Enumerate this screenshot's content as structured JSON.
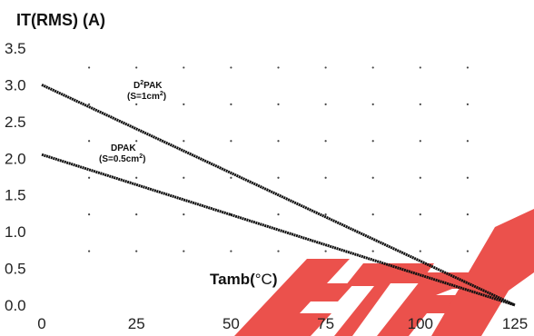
{
  "chart_data": {
    "type": "line",
    "ylabel": "IT(RMS) (A)",
    "xlabel_main": "Tamb(",
    "xlabel_deg": "°C",
    "xlabel_close": ")",
    "xlim": [
      0,
      125
    ],
    "ylim": [
      0,
      3.5
    ],
    "x_ticks": [
      "0",
      "25",
      "50",
      "75",
      "100",
      "125"
    ],
    "y_ticks": [
      "0.0",
      "0.5",
      "1.0",
      "1.5",
      "2.0",
      "2.5",
      "3.0",
      "3.5"
    ],
    "grid": "dotted",
    "series": [
      {
        "name": "D2PAK (S=1cm2)",
        "label_line1": "PAK",
        "label_line2": "(S=1cm",
        "x": [
          0,
          125
        ],
        "y": [
          3.0,
          0.0
        ],
        "color": "#111111"
      },
      {
        "name": "DPAK (S=0.5cm2)",
        "label_line1": "DPAK",
        "label_line2": "(S=0.5cm",
        "x": [
          0,
          125
        ],
        "y": [
          2.05,
          0.0
        ],
        "color": "#111111"
      }
    ],
    "watermark_color": "#e8332d"
  }
}
